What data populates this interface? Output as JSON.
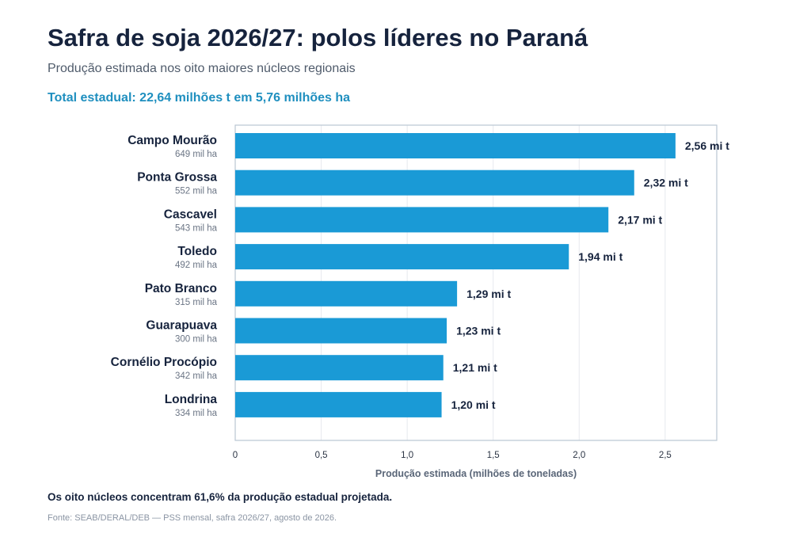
{
  "title": "Safra de soja 2026/27: polos líderes no Paraná",
  "subtitle": "Produção estimada nos oito maiores núcleos regionais",
  "highlight": "Total estadual: 22,64 milhões t em 5,76 milhões ha",
  "note": "Os oito núcleos concentram 61,6% da produção estadual projetada.",
  "source": "Fonte: SEAB/DERAL/DEB — PSS mensal, safra 2026/27, agosto de 2026.",
  "colors": {
    "bar": "#1a9ad6",
    "title": "#16233d",
    "highlight": "#1f8fbf",
    "grid": "#e6e9ee",
    "frame": "#b9c6d3"
  },
  "chart_data": {
    "type": "bar",
    "orientation": "horizontal",
    "categories": [
      "Campo Mourão",
      "Ponta Grossa",
      "Cascavel",
      "Toledo",
      "Pato Branco",
      "Guarapuava",
      "Cornélio Procópio",
      "Londrina"
    ],
    "category_sublabels": [
      "649 mil ha",
      "552 mil ha",
      "543 mil ha",
      "492 mil ha",
      "315 mil ha",
      "300 mil ha",
      "342 mil ha",
      "334 mil ha"
    ],
    "values": [
      2.56,
      2.32,
      2.17,
      1.94,
      1.29,
      1.23,
      1.21,
      1.2
    ],
    "data_labels": [
      "2,56 mi t",
      "2,32 mi t",
      "2,17 mi t",
      "1,94 mi t",
      "1,29 mi t",
      "1,23 mi t",
      "1,21 mi t",
      "1,20 mi t"
    ],
    "xlabel": "Produção estimada (milhões de toneladas)",
    "xlim": [
      0,
      2.8
    ],
    "xticks": [
      0,
      0.5,
      1.0,
      1.5,
      2.0,
      2.5
    ],
    "xtick_labels": [
      "0",
      "0,5",
      "1,0",
      "1,5",
      "2,0",
      "2,5"
    ],
    "grid": true
  }
}
